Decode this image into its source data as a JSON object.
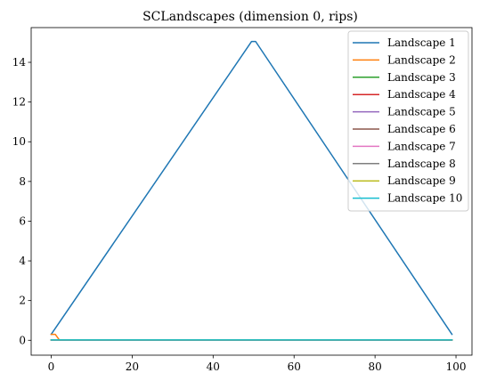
{
  "chart_data": {
    "type": "line",
    "title": "SCLandscapes (dimension 0, rips)",
    "xlabel": "",
    "ylabel": "",
    "xlim": [
      -4.95,
      103.95
    ],
    "ylim": [
      -0.75,
      15.75
    ],
    "x_ticks": [
      0,
      20,
      40,
      60,
      80,
      100
    ],
    "y_ticks": [
      0,
      2,
      4,
      6,
      8,
      10,
      12,
      14
    ],
    "grid": false,
    "legend_position": "top-right",
    "series": [
      {
        "name": "Landscape 1",
        "color": "#1f77b4",
        "points": [
          [
            0,
            0.3
          ],
          [
            49.5,
            15.05
          ],
          [
            50.5,
            15.05
          ],
          [
            99,
            0.3
          ]
        ]
      },
      {
        "name": "Landscape 2",
        "color": "#ff7f0e",
        "points": [
          [
            0,
            0.3
          ],
          [
            1,
            0.3
          ],
          [
            2,
            0.02
          ],
          [
            99,
            0.02
          ]
        ]
      },
      {
        "name": "Landscape 3",
        "color": "#2ca02c",
        "points": [
          [
            0,
            0.02
          ],
          [
            99,
            0.02
          ]
        ]
      },
      {
        "name": "Landscape 4",
        "color": "#d62728",
        "points": [
          [
            0,
            0.02
          ],
          [
            99,
            0.02
          ]
        ]
      },
      {
        "name": "Landscape 5",
        "color": "#9467bd",
        "points": [
          [
            0,
            0.02
          ],
          [
            99,
            0.02
          ]
        ]
      },
      {
        "name": "Landscape 6",
        "color": "#8c564b",
        "points": [
          [
            0,
            0.02
          ],
          [
            99,
            0.02
          ]
        ]
      },
      {
        "name": "Landscape 7",
        "color": "#e377c2",
        "points": [
          [
            0,
            0.02
          ],
          [
            99,
            0.02
          ]
        ]
      },
      {
        "name": "Landscape 8",
        "color": "#7f7f7f",
        "points": [
          [
            0,
            0.02
          ],
          [
            99,
            0.02
          ]
        ]
      },
      {
        "name": "Landscape 9",
        "color": "#bcbd22",
        "points": [
          [
            0,
            0.02
          ],
          [
            99,
            0.02
          ]
        ]
      },
      {
        "name": "Landscape 10",
        "color": "#17becf",
        "points": [
          [
            0,
            0.02
          ],
          [
            99,
            0.02
          ]
        ]
      }
    ]
  }
}
